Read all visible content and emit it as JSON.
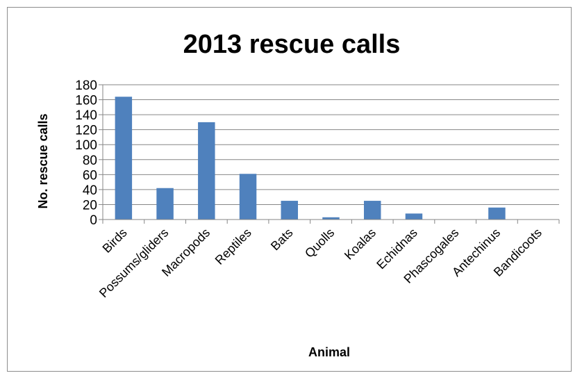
{
  "chart_data": {
    "type": "bar",
    "title": "2013 rescue calls",
    "xlabel": "Animal",
    "ylabel": "No. rescue calls",
    "categories": [
      "Birds",
      "Possums/gliders",
      "Macropods",
      "Reptiles",
      "Bats",
      "Quolls",
      "Koalas",
      "Echidnas",
      "Phascogales",
      "Antechinus",
      "Bandicoots"
    ],
    "values": [
      164,
      42,
      130,
      61,
      25,
      3,
      25,
      8,
      0,
      16,
      0
    ],
    "ylim": [
      0,
      180
    ],
    "yticks": [
      0,
      20,
      40,
      60,
      80,
      100,
      120,
      140,
      160,
      180
    ],
    "grid": true,
    "bar_color": "#4f81bd"
  }
}
